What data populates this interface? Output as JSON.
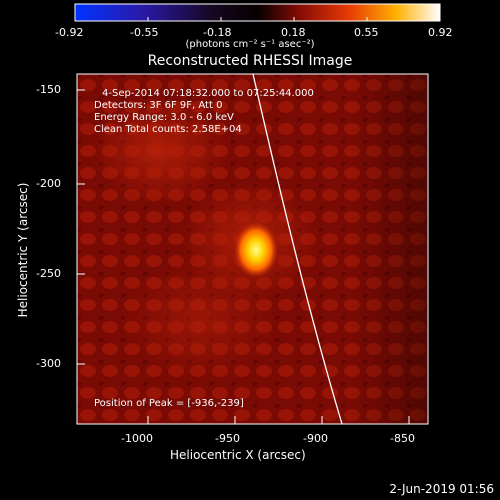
{
  "colorbar": {
    "tick_labels": [
      "-0.92",
      "-0.55",
      "-0.18",
      "0.18",
      "0.55",
      "0.92"
    ],
    "units_label": "(photons cm⁻² s⁻¹ asec⁻²)"
  },
  "title": "Reconstructed RHESSI Image",
  "annotations": {
    "time_range": "4-Sep-2014 07:18:32.000 to 07:25:44.000",
    "detectors": "Detectors: 3F 6F 9F, Att 0",
    "energy_range": "Energy Range: 3.0 - 6.0 keV",
    "clean_counts": "Clean    Total counts: 2.58E+04",
    "peak_position": "Position of Peak = [-936,-239]"
  },
  "axes": {
    "xlabel": "Heliocentric X (arcsec)",
    "ylabel": "Heliocentric Y (arcsec)",
    "x_ticks": [
      "-1000",
      "-950",
      "-900",
      "-850"
    ],
    "y_ticks": [
      "-150",
      "-200",
      "-250",
      "-300"
    ]
  },
  "footer_date": "2-Jun-2019 01:56",
  "colors": {
    "background": "#000000",
    "axis": "#ffffff",
    "limb_line": "#ffffff",
    "map_base": "#8a0d05",
    "source_core": "#ffff80"
  }
}
